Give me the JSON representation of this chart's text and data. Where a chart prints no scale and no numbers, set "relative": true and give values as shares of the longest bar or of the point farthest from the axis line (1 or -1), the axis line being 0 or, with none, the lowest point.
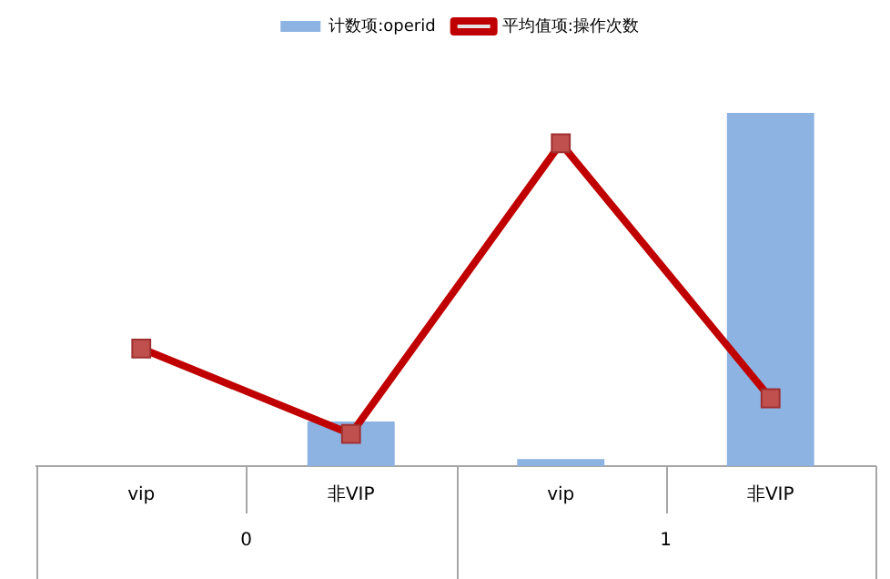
{
  "chart_data": {
    "type": "bar",
    "relative": true,
    "categories": [
      "vip",
      "非VIP",
      "vip",
      "非VIP"
    ],
    "series": [
      {
        "name": "计数项:operid",
        "color": "#8db3e2",
        "values": [
          0,
          0.126,
          0.02,
          1
        ]
      },
      {
        "name": "平均值项:操作次数",
        "type": "line",
        "color": "#c00000",
        "marker": "square",
        "values": [
          0.333,
          0.091,
          0.914,
          0.192
        ]
      }
    ],
    "annotations": [
      "0",
      "1"
    ],
    "legend": "top",
    "grid": false
  }
}
